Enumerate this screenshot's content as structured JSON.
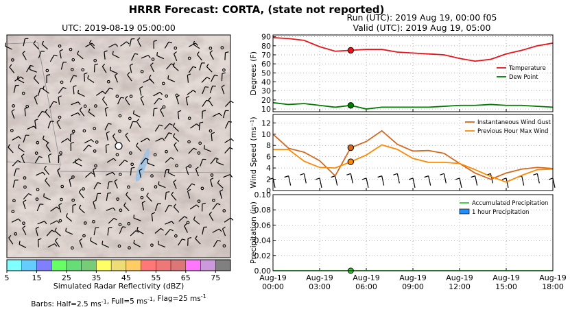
{
  "figure": {
    "suptitle": "HRRR Forecast: CORTA, (state not reported)",
    "run_line": "Run (UTC): 2019 Aug 19, 00:00 f05",
    "valid_line": "Valid (UTC): 2019 Aug 19, 05:00"
  },
  "map": {
    "title": "UTC: 2019-08-19 05:00:00",
    "colorbar_label": "Simulated Radar Reflectivity (dBZ)",
    "colorbar_ticks": [
      "5",
      "15",
      "25",
      "35",
      "45",
      "55",
      "65",
      "75"
    ],
    "colorbar_colors": [
      "#80ffff",
      "#66ccff",
      "#8080ff",
      "#66ff66",
      "#66dd77",
      "#77cc77",
      "#ffff66",
      "#eedd77",
      "#ffcc66",
      "#ff7777",
      "#ee7777",
      "#dd7777",
      "#ff77ff",
      "#cc99dd",
      "#808080"
    ],
    "barbs_note": "Barbs: Half=2.5 ms-1, Full=5 ms-1, Flag=25 ms-1"
  },
  "chart_data": [
    {
      "type": "line",
      "ylabel": "Degrees (F)",
      "ylim": [
        7,
        92
      ],
      "yticks": [
        "10",
        "20",
        "30",
        "40",
        "50",
        "60",
        "70",
        "80",
        "90"
      ],
      "xlim": [
        0,
        18
      ],
      "grid": true,
      "legend_placement": "center-right",
      "current_hour": 5,
      "series": [
        {
          "name": "Temperature",
          "color": "#e8141b",
          "x": [
            0,
            1,
            2,
            3,
            4,
            5,
            6,
            7,
            8,
            9,
            10,
            11,
            12,
            13,
            14,
            15,
            16,
            17,
            18
          ],
          "y": [
            89,
            88,
            86,
            79,
            74,
            75,
            76,
            76,
            73,
            72,
            71,
            70,
            66,
            63,
            65,
            71,
            75,
            80,
            83
          ]
        },
        {
          "name": "Dew Point",
          "color": "#007a00",
          "x": [
            0,
            1,
            2,
            3,
            4,
            5,
            6,
            7,
            8,
            9,
            10,
            11,
            12,
            13,
            14,
            15,
            16,
            17,
            18
          ],
          "y": [
            17,
            15,
            16,
            14,
            12,
            14,
            10,
            12,
            12,
            12,
            12,
            13,
            14,
            14,
            15,
            14,
            14,
            13,
            12
          ]
        }
      ]
    },
    {
      "type": "line",
      "ylabel": "Wind Speed (ms⁻¹)",
      "ylim": [
        0,
        13.5
      ],
      "yticks": [
        "0",
        "2",
        "4",
        "6",
        "8",
        "10",
        "12"
      ],
      "xlim": [
        0,
        18
      ],
      "grid": true,
      "legend_placement": "top-right",
      "current_hour": 5,
      "series": [
        {
          "name": "Instantaneous Wind Gust",
          "color": "#d2691e",
          "x": [
            0,
            1,
            2,
            3,
            4,
            5,
            6,
            7,
            8,
            9,
            10,
            11,
            12,
            13,
            14,
            15,
            16,
            17,
            18
          ],
          "y": [
            10,
            7.5,
            6.8,
            5.3,
            2.6,
            7.6,
            8.7,
            10.6,
            8.2,
            7.0,
            7.1,
            6.6,
            4.8,
            3.1,
            2.0,
            3.1,
            3.8,
            4.1,
            3.9
          ]
        },
        {
          "name": "Previous Hour Max Wind",
          "color": "#ff8800",
          "x": [
            0,
            1,
            2,
            3,
            4,
            5,
            6,
            7,
            8,
            9,
            10,
            11,
            12,
            13,
            14,
            15,
            16,
            17,
            18
          ],
          "y": [
            7.3,
            7.3,
            5.2,
            4.1,
            4.0,
            5.1,
            6.3,
            8.1,
            7.3,
            5.7,
            5.0,
            5.0,
            4.8,
            3.7,
            2.5,
            1.5,
            2.7,
            3.7,
            3.8
          ]
        }
      ]
    },
    {
      "type": "line",
      "ylabel": "Precipitation (in)",
      "ylim": [
        0,
        0.1
      ],
      "yticks": [
        "0.00",
        "0.02",
        "0.04",
        "0.06",
        "0.08",
        "0.10"
      ],
      "xlim": [
        0,
        18
      ],
      "xticks": [
        {
          "x": 0,
          "line1": "Aug-19",
          "line2": "00:00"
        },
        {
          "x": 3,
          "line1": "Aug-19",
          "line2": "03:00"
        },
        {
          "x": 6,
          "line1": "Aug-19",
          "line2": "06:00"
        },
        {
          "x": 9,
          "line1": "Aug-19",
          "line2": "09:00"
        },
        {
          "x": 12,
          "line1": "Aug-19",
          "line2": "12:00"
        },
        {
          "x": 15,
          "line1": "Aug-19",
          "line2": "15:00"
        },
        {
          "x": 18,
          "line1": "Aug-19",
          "line2": "18:00"
        }
      ],
      "grid": true,
      "legend_placement": "top-right",
      "current_hour": 5,
      "series": [
        {
          "name": "Accumulated Precipitation",
          "color": "#33cc33",
          "x": [
            0,
            18
          ],
          "y": [
            0,
            0
          ]
        },
        {
          "name": "1 hour Precipitation",
          "color": "#1e90ff",
          "kind": "bar",
          "x": [],
          "y": []
        }
      ]
    }
  ]
}
